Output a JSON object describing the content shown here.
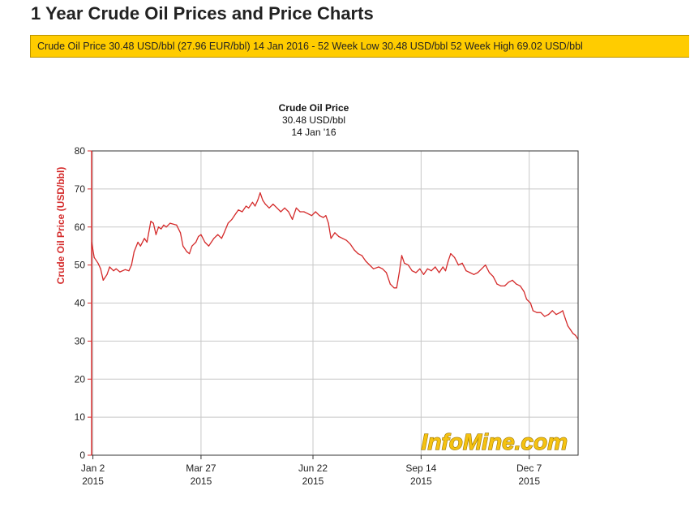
{
  "page": {
    "title": "1 Year Crude Oil Prices and Price Charts",
    "ticker": "Crude Oil Price 30.48 USD/bbl (27.96 EUR/bbl) 14 Jan 2016 - 52 Week Low 30.48 USD/bbl 52 Week High 69.02 USD/bbl"
  },
  "brand": "InfoMine.com",
  "colors": {
    "line": "#d42a2a",
    "ticker_bg": "#ffcc00",
    "grid": "#c8c8c8"
  },
  "chart_data": {
    "type": "line",
    "title": "Crude Oil Price",
    "subtitle_lines": [
      "30.48 USD/bbl",
      "14 Jan '16"
    ],
    "ylabel": "Crude Oil Price (USD/bbl)",
    "xlabel": "",
    "ylim": [
      0,
      80
    ],
    "yticks": [
      0,
      10,
      20,
      30,
      40,
      50,
      60,
      70,
      80
    ],
    "xlim": [
      "2015-01-01",
      "2016-01-14"
    ],
    "xticks": [
      {
        "date": "2015-01-02",
        "label1": "Jan 2",
        "label2": "2015"
      },
      {
        "date": "2015-03-27",
        "label1": "Mar 27",
        "label2": "2015"
      },
      {
        "date": "2015-06-22",
        "label1": "Jun 22",
        "label2": "2015"
      },
      {
        "date": "2015-09-14",
        "label1": "Sep 14",
        "label2": "2015"
      },
      {
        "date": "2015-12-07",
        "label1": "Dec 7",
        "label2": "2015"
      }
    ],
    "grid": true,
    "series": [
      {
        "color": "#d42a2a",
        "points": [
          [
            "2015-01-01",
            56
          ],
          [
            "2015-01-03",
            52
          ],
          [
            "2015-01-06",
            50.5
          ],
          [
            "2015-01-08",
            49
          ],
          [
            "2015-01-10",
            46
          ],
          [
            "2015-01-13",
            47.5
          ],
          [
            "2015-01-15",
            49.5
          ],
          [
            "2015-01-18",
            48.5
          ],
          [
            "2015-01-20",
            49
          ],
          [
            "2015-01-23",
            48.2
          ],
          [
            "2015-01-27",
            48.8
          ],
          [
            "2015-01-30",
            48.5
          ],
          [
            "2015-02-01",
            50
          ],
          [
            "2015-02-03",
            53.5
          ],
          [
            "2015-02-06",
            56
          ],
          [
            "2015-02-08",
            55
          ],
          [
            "2015-02-11",
            57
          ],
          [
            "2015-02-13",
            56
          ],
          [
            "2015-02-16",
            61.5
          ],
          [
            "2015-02-18",
            61
          ],
          [
            "2015-02-20",
            58
          ],
          [
            "2015-02-22",
            60
          ],
          [
            "2015-02-24",
            59.5
          ],
          [
            "2015-02-26",
            60.5
          ],
          [
            "2015-02-28",
            60
          ],
          [
            "2015-03-03",
            61
          ],
          [
            "2015-03-08",
            60.5
          ],
          [
            "2015-03-11",
            58.5
          ],
          [
            "2015-03-13",
            55
          ],
          [
            "2015-03-16",
            53.5
          ],
          [
            "2015-03-18",
            53
          ],
          [
            "2015-03-20",
            55
          ],
          [
            "2015-03-23",
            56
          ],
          [
            "2015-03-25",
            57.5
          ],
          [
            "2015-03-27",
            58
          ],
          [
            "2015-03-30",
            56
          ],
          [
            "2015-04-02",
            55
          ],
          [
            "2015-04-06",
            57
          ],
          [
            "2015-04-09",
            58
          ],
          [
            "2015-04-12",
            57
          ],
          [
            "2015-04-14",
            58.5
          ],
          [
            "2015-04-17",
            61
          ],
          [
            "2015-04-20",
            62
          ],
          [
            "2015-04-23",
            63.5
          ],
          [
            "2015-04-25",
            64.5
          ],
          [
            "2015-04-28",
            64
          ],
          [
            "2015-05-01",
            65.5
          ],
          [
            "2015-05-03",
            65
          ],
          [
            "2015-05-06",
            66.5
          ],
          [
            "2015-05-08",
            65.5
          ],
          [
            "2015-05-10",
            67
          ],
          [
            "2015-05-12",
            69
          ],
          [
            "2015-05-14",
            67
          ],
          [
            "2015-05-16",
            66
          ],
          [
            "2015-05-19",
            65
          ],
          [
            "2015-05-22",
            66
          ],
          [
            "2015-05-25",
            65
          ],
          [
            "2015-05-28",
            64
          ],
          [
            "2015-05-31",
            65
          ],
          [
            "2015-06-03",
            64
          ],
          [
            "2015-06-06",
            62
          ],
          [
            "2015-06-09",
            65
          ],
          [
            "2015-06-12",
            64
          ],
          [
            "2015-06-15",
            64
          ],
          [
            "2015-06-18",
            63.5
          ],
          [
            "2015-06-21",
            63
          ],
          [
            "2015-06-24",
            64
          ],
          [
            "2015-06-27",
            63
          ],
          [
            "2015-06-30",
            62.5
          ],
          [
            "2015-07-02",
            63
          ],
          [
            "2015-07-04",
            61
          ],
          [
            "2015-07-06",
            57
          ],
          [
            "2015-07-09",
            58.5
          ],
          [
            "2015-07-12",
            57.5
          ],
          [
            "2015-07-15",
            57
          ],
          [
            "2015-07-18",
            56.5
          ],
          [
            "2015-07-21",
            55.5
          ],
          [
            "2015-07-24",
            54
          ],
          [
            "2015-07-27",
            53
          ],
          [
            "2015-07-30",
            52.5
          ],
          [
            "2015-08-02",
            51
          ],
          [
            "2015-08-05",
            50
          ],
          [
            "2015-08-08",
            49
          ],
          [
            "2015-08-12",
            49.5
          ],
          [
            "2015-08-15",
            49
          ],
          [
            "2015-08-18",
            48
          ],
          [
            "2015-08-21",
            45
          ],
          [
            "2015-08-24",
            44
          ],
          [
            "2015-08-26",
            44
          ],
          [
            "2015-08-28",
            48
          ],
          [
            "2015-08-30",
            52.5
          ],
          [
            "2015-09-01",
            50.5
          ],
          [
            "2015-09-04",
            50
          ],
          [
            "2015-09-07",
            48.5
          ],
          [
            "2015-09-10",
            48
          ],
          [
            "2015-09-13",
            49
          ],
          [
            "2015-09-16",
            47.5
          ],
          [
            "2015-09-19",
            49
          ],
          [
            "2015-09-22",
            48.5
          ],
          [
            "2015-09-25",
            49.5
          ],
          [
            "2015-09-28",
            48
          ],
          [
            "2015-10-01",
            49.5
          ],
          [
            "2015-10-03",
            48.5
          ],
          [
            "2015-10-05",
            51
          ],
          [
            "2015-10-07",
            53
          ],
          [
            "2015-10-10",
            52
          ],
          [
            "2015-10-13",
            50
          ],
          [
            "2015-10-16",
            50.5
          ],
          [
            "2015-10-19",
            48.5
          ],
          [
            "2015-10-22",
            48
          ],
          [
            "2015-10-25",
            47.5
          ],
          [
            "2015-10-28",
            48
          ],
          [
            "2015-10-31",
            49
          ],
          [
            "2015-11-03",
            50
          ],
          [
            "2015-11-06",
            48
          ],
          [
            "2015-11-09",
            47
          ],
          [
            "2015-11-12",
            45
          ],
          [
            "2015-11-15",
            44.5
          ],
          [
            "2015-11-18",
            44.5
          ],
          [
            "2015-11-21",
            45.5
          ],
          [
            "2015-11-24",
            46
          ],
          [
            "2015-11-27",
            45
          ],
          [
            "2015-11-30",
            44.5
          ],
          [
            "2015-12-03",
            43
          ],
          [
            "2015-12-05",
            41
          ],
          [
            "2015-12-08",
            40
          ],
          [
            "2015-12-10",
            38
          ],
          [
            "2015-12-13",
            37.5
          ],
          [
            "2015-12-16",
            37.5
          ],
          [
            "2015-12-19",
            36.5
          ],
          [
            "2015-12-22",
            37
          ],
          [
            "2015-12-25",
            38
          ],
          [
            "2015-12-28",
            37
          ],
          [
            "2015-12-31",
            37.5
          ],
          [
            "2016-01-02",
            38
          ],
          [
            "2016-01-04",
            36
          ],
          [
            "2016-01-06",
            34
          ],
          [
            "2016-01-08",
            33
          ],
          [
            "2016-01-10",
            32
          ],
          [
            "2016-01-12",
            31.5
          ],
          [
            "2016-01-14",
            30.48
          ]
        ]
      }
    ]
  }
}
